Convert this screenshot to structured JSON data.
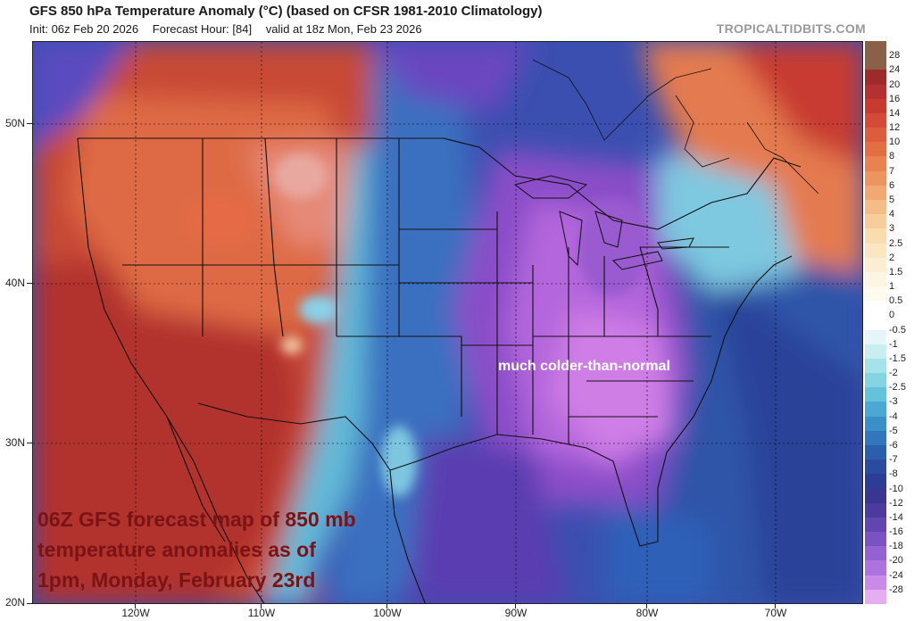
{
  "header": {
    "title": "GFS 850 hPa Temperature Anomaly (°C) (based on CFSR 1981-2010 Climatology)",
    "init": "Init: 06z Feb 20 2026",
    "forecast_hour": "Forecast Hour: [84]",
    "valid": "valid at 18z Mon, Feb 23 2026",
    "brand": "TROPICALTIDBITS.COM"
  },
  "axes": {
    "lat_labels": [
      "50N",
      "40N",
      "30N",
      "20N"
    ],
    "lon_labels": [
      "120W",
      "110W",
      "100W",
      "90W",
      "80W",
      "70W"
    ]
  },
  "annotations": {
    "colder": "much colder-than-normal",
    "caption_line1": "06Z GFS forecast map of 850 mb",
    "caption_line2": "temperature anomalies as of",
    "caption_line3": "1pm, Monday, February 23rd"
  },
  "colorbar": {
    "labels": [
      "28",
      "24",
      "20",
      "16",
      "14",
      "12",
      "10",
      "8",
      "7",
      "6",
      "5",
      "4",
      "3",
      "2.5",
      "2",
      "1.5",
      "1",
      "0.5",
      "0",
      "-0.5",
      "-1",
      "-1.5",
      "-2",
      "-2.5",
      "-3",
      "-4",
      "-5",
      "-6",
      "-7",
      "-8",
      "-10",
      "-12",
      "-14",
      "-16",
      "-18",
      "-20",
      "-24",
      "-28"
    ],
    "colors": [
      "#8a6048",
      "#9e2a2a",
      "#b53030",
      "#c83a30",
      "#d44a36",
      "#de5c3c",
      "#e46e44",
      "#ea8150",
      "#ee945e",
      "#f2a872",
      "#f5bc88",
      "#f7cd9c",
      "#f9dcaf",
      "#fae6c2",
      "#fbeed3",
      "#fcf5e2",
      "#fdfaee",
      "#ffffff",
      "#ffffff",
      "#e6f6f8",
      "#c8eef2",
      "#a6e2ea",
      "#84d4e2",
      "#64c2da",
      "#4aa8d2",
      "#3b8fc8",
      "#3277bd",
      "#2b5fae",
      "#2a4ba0",
      "#2d3d95",
      "#3a3590",
      "#4d3a9e",
      "#6245b0",
      "#7a52c4",
      "#9460d2",
      "#ae72de",
      "#c98ae8",
      "#e6aef0"
    ]
  }
}
